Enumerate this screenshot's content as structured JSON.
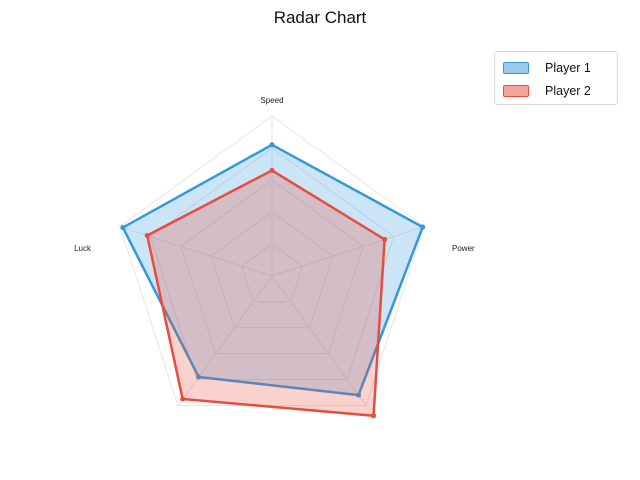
{
  "chart_data": {
    "type": "radar",
    "title": "Radar Chart",
    "axes": [
      "Speed",
      "Power",
      "",
      "",
      "Luck"
    ],
    "rmax": 100,
    "rings": [
      20,
      40,
      60,
      80,
      100
    ],
    "grid": true,
    "legend_position": "top-right",
    "series": [
      {
        "name": "Player 1",
        "values": [
          82,
          99,
          92,
          78,
          98
        ],
        "color": "#3498db"
      },
      {
        "name": "Player 2",
        "values": [
          66,
          74,
          108,
          95,
          82
        ],
        "color": "#e74c3c"
      }
    ]
  }
}
